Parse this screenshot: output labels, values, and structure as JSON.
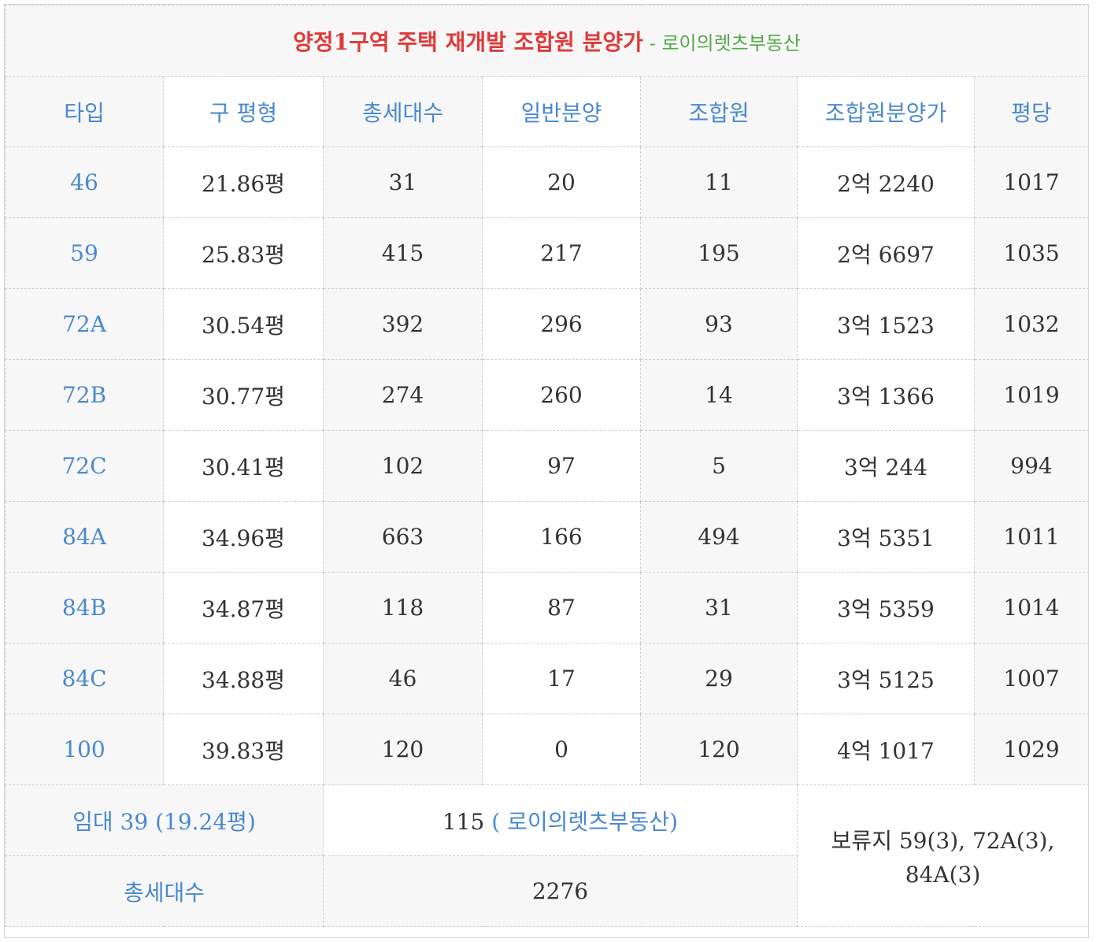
{
  "title": {
    "main": "양정1구역 주택 재개발 조합원 분양가",
    "separator": " - ",
    "source": "로이의렛츠부동산"
  },
  "headers": [
    "타입",
    "구 평형",
    "총세대수",
    "일반분양",
    "조합원",
    "조합원분양가",
    "평당"
  ],
  "rows": [
    {
      "type": "46",
      "old_size": "21.86평",
      "total": "31",
      "general": "20",
      "member": "11",
      "member_price": "2억 2240",
      "per_pyeong": "1017"
    },
    {
      "type": "59",
      "old_size": "25.83평",
      "total": "415",
      "general": "217",
      "member": "195",
      "member_price": "2억 6697",
      "per_pyeong": "1035"
    },
    {
      "type": "72A",
      "old_size": "30.54평",
      "total": "392",
      "general": "296",
      "member": "93",
      "member_price": "3억 1523",
      "per_pyeong": "1032"
    },
    {
      "type": "72B",
      "old_size": "30.77평",
      "total": "274",
      "general": "260",
      "member": "14",
      "member_price": "3억 1366",
      "per_pyeong": "1019"
    },
    {
      "type": "72C",
      "old_size": "30.41평",
      "total": "102",
      "general": "97",
      "member": "5",
      "member_price": "3억 244",
      "per_pyeong": "994"
    },
    {
      "type": "84A",
      "old_size": "34.96평",
      "total": "663",
      "general": "166",
      "member": "494",
      "member_price": "3억 5351",
      "per_pyeong": "1011"
    },
    {
      "type": "84B",
      "old_size": "34.87평",
      "total": "118",
      "general": "87",
      "member": "31",
      "member_price": "3억 5359",
      "per_pyeong": "1014"
    },
    {
      "type": "84C",
      "old_size": "34.88평",
      "total": "46",
      "general": "17",
      "member": "29",
      "member_price": "3억 5125",
      "per_pyeong": "1007"
    },
    {
      "type": "100",
      "old_size": "39.83평",
      "total": "120",
      "general": "0",
      "member": "120",
      "member_price": "4억 1017",
      "per_pyeong": "1029"
    }
  ],
  "footer": {
    "rental_label": "임대 39 (19.24평)",
    "rental_value": "115",
    "rental_link": "( 로이의렛츠부동산)",
    "total_label": "총세대수",
    "total_value": "2276",
    "reserve_line1": "보류지 59(3), 72A(3),",
    "reserve_line2": "84A(3)"
  },
  "colors": {
    "title": "#e03a3a",
    "source": "#55a84a",
    "header_text": "#4a88cf",
    "body_text": "#333333",
    "gray_bg": "#f7f7f7"
  }
}
